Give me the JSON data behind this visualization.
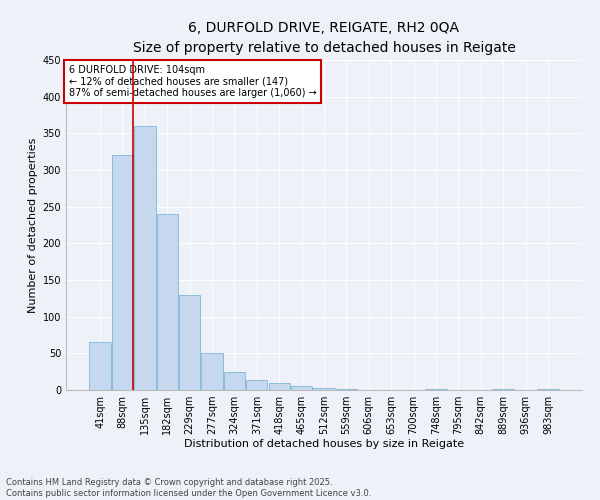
{
  "title": "6, DURFOLD DRIVE, REIGATE, RH2 0QA",
  "subtitle": "Size of property relative to detached houses in Reigate",
  "xlabel": "Distribution of detached houses by size in Reigate",
  "ylabel": "Number of detached properties",
  "categories": [
    "41sqm",
    "88sqm",
    "135sqm",
    "182sqm",
    "229sqm",
    "277sqm",
    "324sqm",
    "371sqm",
    "418sqm",
    "465sqm",
    "512sqm",
    "559sqm",
    "606sqm",
    "653sqm",
    "700sqm",
    "748sqm",
    "795sqm",
    "842sqm",
    "889sqm",
    "936sqm",
    "983sqm"
  ],
  "values": [
    65,
    320,
    360,
    240,
    130,
    50,
    25,
    13,
    9,
    5,
    3,
    1,
    0,
    0,
    0,
    1,
    0,
    0,
    1,
    0,
    1
  ],
  "bar_color": "#c5d8ed",
  "bar_edge_color": "#6baed6",
  "annotation_text": "6 DURFOLD DRIVE: 104sqm\n← 12% of detached houses are smaller (147)\n87% of semi-detached houses are larger (1,060) →",
  "annotation_box_color": "#ffffff",
  "annotation_box_edge_color": "#cc0000",
  "vline_color": "#cc0000",
  "vline_pos": 1.45,
  "ylim": [
    0,
    450
  ],
  "yticks": [
    0,
    50,
    100,
    150,
    200,
    250,
    300,
    350,
    400,
    450
  ],
  "background_color": "#eef2f8",
  "plot_bg_color": "#eef2f8",
  "footer": "Contains HM Land Registry data © Crown copyright and database right 2025.\nContains public sector information licensed under the Open Government Licence v3.0.",
  "title_fontsize": 10,
  "subtitle_fontsize": 9,
  "xlabel_fontsize": 8,
  "ylabel_fontsize": 8,
  "tick_fontsize": 7,
  "annot_fontsize": 7,
  "footer_fontsize": 6
}
